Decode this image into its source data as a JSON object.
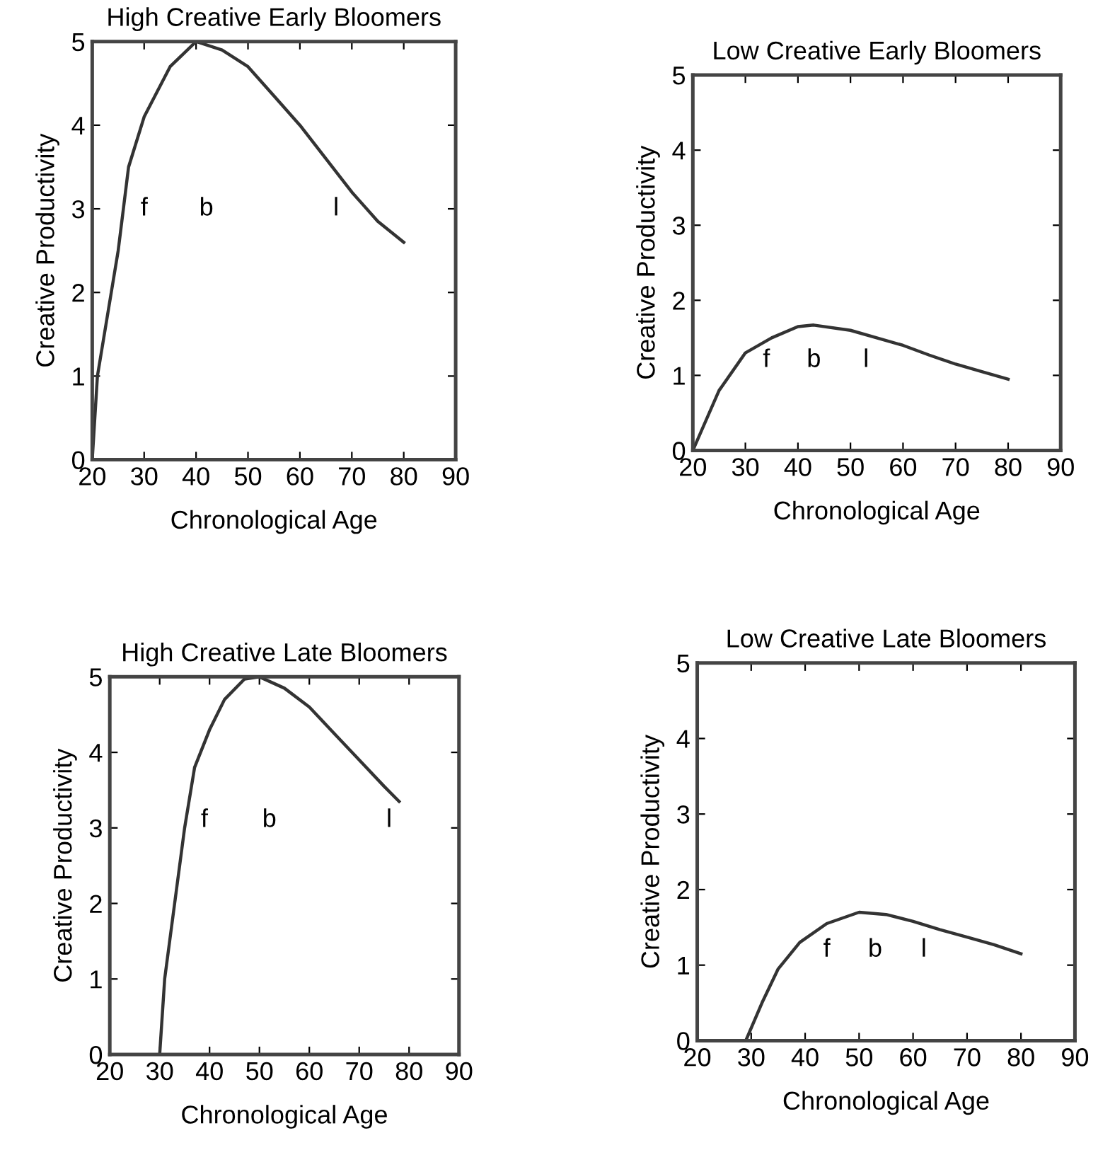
{
  "chart_data": [
    {
      "type": "line",
      "title": "High Creative Early Bloomers",
      "xlabel": "Chronological Age",
      "ylabel": "Creative Productivity",
      "x": [
        20,
        21,
        25,
        27,
        30,
        35,
        40,
        45,
        50,
        55,
        60,
        65,
        70,
        75,
        80
      ],
      "series": [
        {
          "color": "#333333",
          "values": [
            0,
            1,
            2.5,
            3.5,
            4.1,
            4.7,
            5.0,
            4.9,
            4.7,
            4.35,
            4.0,
            3.6,
            3.2,
            2.85,
            2.6
          ]
        }
      ],
      "xlim": [
        20,
        90
      ],
      "xticks": [
        20,
        30,
        40,
        50,
        60,
        70,
        80,
        90
      ],
      "ylim": [
        0,
        5
      ],
      "yticks": [
        0,
        1,
        2,
        3,
        4,
        5
      ],
      "annotations": [
        "f",
        "b",
        "l"
      ]
    },
    {
      "type": "line",
      "title": "Low Creative Early Bloomers",
      "xlabel": "Chronological Age",
      "ylabel": "Creative Productivity",
      "x": [
        20,
        25,
        30,
        35,
        40,
        43,
        50,
        55,
        60,
        65,
        70,
        75,
        80
      ],
      "series": [
        {
          "color": "#333333",
          "values": [
            0,
            0.8,
            1.3,
            1.5,
            1.65,
            1.67,
            1.6,
            1.5,
            1.4,
            1.27,
            1.15,
            1.05,
            0.95
          ]
        }
      ],
      "xlim": [
        20,
        90
      ],
      "xticks": [
        20,
        30,
        40,
        50,
        60,
        70,
        80,
        90
      ],
      "ylim": [
        0,
        5
      ],
      "yticks": [
        0,
        1,
        2,
        3,
        4,
        5
      ],
      "annotations": [
        "f",
        "b",
        "l"
      ]
    },
    {
      "type": "line",
      "title": "High Creative Late Bloomers",
      "xlabel": "Chronological Age",
      "ylabel": "Creative Productivity",
      "x": [
        30,
        31,
        33,
        35,
        37,
        40,
        43,
        47,
        50,
        55,
        60,
        65,
        70,
        75,
        78
      ],
      "series": [
        {
          "color": "#333333",
          "values": [
            0,
            1,
            2,
            3,
            3.8,
            4.3,
            4.7,
            4.97,
            5.0,
            4.85,
            4.6,
            4.25,
            3.9,
            3.55,
            3.35
          ]
        }
      ],
      "xlim": [
        20,
        90
      ],
      "xticks": [
        20,
        30,
        40,
        50,
        60,
        70,
        80,
        90
      ],
      "ylim": [
        0,
        5
      ],
      "yticks": [
        0,
        1,
        2,
        3,
        4,
        5
      ],
      "annotations": [
        "f",
        "b",
        "l"
      ]
    },
    {
      "type": "line",
      "title": "Low Creative Late Bloomers",
      "xlabel": "Chronological Age",
      "ylabel": "Creative Productivity",
      "x": [
        29,
        32,
        35,
        39,
        44,
        50,
        55,
        60,
        65,
        70,
        75,
        80
      ],
      "series": [
        {
          "color": "#333333",
          "values": [
            0,
            0.5,
            0.95,
            1.3,
            1.55,
            1.7,
            1.67,
            1.58,
            1.47,
            1.37,
            1.27,
            1.15
          ]
        }
      ],
      "xlim": [
        20,
        90
      ],
      "xticks": [
        20,
        30,
        40,
        50,
        60,
        70,
        80,
        90
      ],
      "ylim": [
        0,
        5
      ],
      "yticks": [
        0,
        1,
        2,
        3,
        4,
        5
      ],
      "annotations": [
        "f",
        "b",
        "l"
      ]
    }
  ]
}
